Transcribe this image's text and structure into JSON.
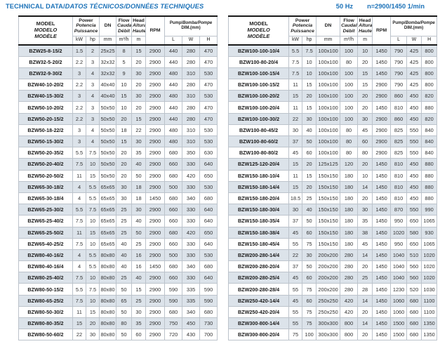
{
  "colors": {
    "accent": "#1c72b8",
    "stripe": "#dce3ea",
    "grid": "#bcc3cb",
    "heavy": "#1a1a1a",
    "text": "#333333"
  },
  "header_bar": {
    "title_en": "TECHNICAL DATA/",
    "title_intl": "DATOS TÉCNICOS/DONNÉES TECHNIQUES",
    "frequency": "50 Hz",
    "speed": "n=2900/1450 1/min"
  },
  "table_header": {
    "model": {
      "en": "MODEL",
      "es": "MODELO",
      "fr": "MODÈLE"
    },
    "power": {
      "en": "Power",
      "es": "Potencia",
      "fr": "Puissance"
    },
    "dn": "DN",
    "flow": {
      "en": "Flow",
      "es": "Caudal",
      "fr": "Débit"
    },
    "head": {
      "en": "Head",
      "es": "Altura",
      "fr": "Hauteur"
    },
    "rpm": "RPM",
    "pump_dim": {
      "en": "Pump/",
      "intl": "Bomba/Pompe",
      "line2": "DIM.(mm)"
    },
    "units": {
      "kw": "kW",
      "hp": "hp",
      "mm": "mm",
      "flow": "m³/h",
      "head": "m",
      "l": "L",
      "w": "W",
      "h": "H"
    }
  },
  "tables": [
    {
      "rows": [
        [
          "BZW25-8-15/2",
          "1.5",
          "2",
          "25x25",
          "8",
          "15",
          "2900",
          "440",
          "280",
          "470"
        ],
        [
          "BZW32-5-20/2",
          "2.2",
          "3",
          "32x32",
          "5",
          "20",
          "2900",
          "440",
          "280",
          "470"
        ],
        [
          "BZW32-9-30/2",
          "3",
          "4",
          "32x32",
          "9",
          "30",
          "2900",
          "480",
          "310",
          "530"
        ],
        [
          "BZW40-10-20/2",
          "2.2",
          "3",
          "40x40",
          "10",
          "20",
          "2900",
          "440",
          "280",
          "470"
        ],
        [
          "BZW40-15-30/2",
          "3",
          "4",
          "40x40",
          "15",
          "30",
          "2900",
          "480",
          "310",
          "530"
        ],
        [
          "BZW50-10-20/2",
          "2.2",
          "3",
          "50x50",
          "10",
          "20",
          "2900",
          "440",
          "280",
          "470"
        ],
        [
          "BZW50-20-15/2",
          "2.2",
          "3",
          "50x50",
          "20",
          "15",
          "2900",
          "440",
          "280",
          "470"
        ],
        [
          "BZW50-18-22/2",
          "3",
          "4",
          "50x50",
          "18",
          "22",
          "2900",
          "480",
          "310",
          "530"
        ],
        [
          "BZW50-15-30/2",
          "3",
          "4",
          "50x50",
          "15",
          "30",
          "2900",
          "480",
          "310",
          "530"
        ],
        [
          "BZW50-20-35/2",
          "5.5",
          "7.5",
          "50x50",
          "20",
          "35",
          "2900",
          "680",
          "350",
          "630"
        ],
        [
          "BZW50-20-40/2",
          "7.5",
          "10",
          "50x50",
          "20",
          "40",
          "2900",
          "660",
          "330",
          "640"
        ],
        [
          "BZW50-20-50/2",
          "11",
          "15",
          "50x50",
          "20",
          "50",
          "2900",
          "680",
          "420",
          "650"
        ],
        [
          "BZW65-30-18/2",
          "4",
          "5.5",
          "65x65",
          "30",
          "18",
          "2900",
          "500",
          "330",
          "530"
        ],
        [
          "BZW65-30-18/4",
          "4",
          "5.5",
          "65x65",
          "30",
          "18",
          "1450",
          "680",
          "340",
          "680"
        ],
        [
          "BZW65-25-30/2",
          "5.5",
          "7.5",
          "65x65",
          "25",
          "30",
          "2900",
          "660",
          "330",
          "640"
        ],
        [
          "BZW65-25-40/2",
          "7.5",
          "10",
          "65x65",
          "25",
          "40",
          "2900",
          "660",
          "330",
          "640"
        ],
        [
          "BZW65-25-50/2",
          "11",
          "15",
          "65x65",
          "25",
          "50",
          "2900",
          "680",
          "420",
          "650"
        ],
        [
          "BZW65-40-25/2",
          "7.5",
          "10",
          "65x65",
          "40",
          "25",
          "2900",
          "660",
          "330",
          "640"
        ],
        [
          "BZW80-40-16/2",
          "4",
          "5.5",
          "80x80",
          "40",
          "16",
          "2900",
          "500",
          "330",
          "530"
        ],
        [
          "BZW80-40-16/4",
          "4",
          "5.5",
          "80x80",
          "40",
          "16",
          "1450",
          "680",
          "340",
          "680"
        ],
        [
          "BZW80-25-40/2",
          "7.5",
          "10",
          "80x80",
          "25",
          "40",
          "2900",
          "660",
          "330",
          "640"
        ],
        [
          "BZW80-50-15/2",
          "5.5",
          "7.5",
          "80x80",
          "50",
          "15",
          "2900",
          "590",
          "335",
          "590"
        ],
        [
          "BZW80-65-25/2",
          "7.5",
          "10",
          "80x80",
          "65",
          "25",
          "2900",
          "590",
          "335",
          "590"
        ],
        [
          "BZW80-50-30/2",
          "11",
          "15",
          "80x80",
          "50",
          "30",
          "2900",
          "680",
          "340",
          "680"
        ],
        [
          "BZW80-80-35/2",
          "15",
          "20",
          "80x80",
          "80",
          "35",
          "2900",
          "750",
          "450",
          "730"
        ],
        [
          "BZW80-50-60/2",
          "22",
          "30",
          "80x80",
          "50",
          "60",
          "2900",
          "720",
          "430",
          "700"
        ]
      ]
    },
    {
      "rows": [
        [
          "BZW100-100-10/4",
          "5.5",
          "7.5",
          "100x100",
          "100",
          "10",
          "1450",
          "790",
          "425",
          "800"
        ],
        [
          "BZW100-80-20/4",
          "7.5",
          "10",
          "100x100",
          "80",
          "20",
          "1450",
          "790",
          "425",
          "800"
        ],
        [
          "BZW100-100-15/4",
          "7.5",
          "10",
          "100x100",
          "100",
          "15",
          "1450",
          "790",
          "425",
          "800"
        ],
        [
          "BZW100-100-15/2",
          "11",
          "15",
          "100x100",
          "100",
          "15",
          "2900",
          "790",
          "425",
          "800"
        ],
        [
          "BZW100-100-20/2",
          "15",
          "20",
          "100x100",
          "100",
          "20",
          "2900",
          "860",
          "450",
          "820"
        ],
        [
          "BZW100-100-20/4",
          "11",
          "15",
          "100x100",
          "100",
          "20",
          "1450",
          "810",
          "450",
          "880"
        ],
        [
          "BZW100-100-30/2",
          "22",
          "30",
          "100x100",
          "100",
          "30",
          "2900",
          "860",
          "450",
          "820"
        ],
        [
          "BZW100-80-45/2",
          "30",
          "40",
          "100x100",
          "80",
          "45",
          "2900",
          "825",
          "550",
          "840"
        ],
        [
          "BZW100-80-60/2",
          "37",
          "50",
          "100x100",
          "80",
          "60",
          "2900",
          "825",
          "550",
          "840"
        ],
        [
          "BZW100-80-80/2",
          "45",
          "60",
          "100x100",
          "80",
          "80",
          "2900",
          "825",
          "550",
          "840"
        ],
        [
          "BZW125-120-20/4",
          "15",
          "20",
          "125x125",
          "120",
          "20",
          "1450",
          "810",
          "450",
          "880"
        ],
        [
          "BZW150-180-10/4",
          "11",
          "15",
          "150x150",
          "180",
          "10",
          "1450",
          "810",
          "450",
          "880"
        ],
        [
          "BZW150-180-14/4",
          "15",
          "20",
          "150x150",
          "180",
          "14",
          "1450",
          "810",
          "450",
          "880"
        ],
        [
          "BZW150-180-20/4",
          "18.5",
          "25",
          "150x150",
          "180",
          "20",
          "1450",
          "810",
          "450",
          "880"
        ],
        [
          "BZW150-180-30/4",
          "30",
          "40",
          "150x150",
          "180",
          "30",
          "1450",
          "870",
          "550",
          "990"
        ],
        [
          "BZW150-180-35/4",
          "37",
          "50",
          "150x150",
          "180",
          "35",
          "1450",
          "950",
          "650",
          "1065"
        ],
        [
          "BZW150-180-38/4",
          "45",
          "60",
          "150x150",
          "180",
          "38",
          "1450",
          "1020",
          "580",
          "930"
        ],
        [
          "BZW150-180-45/4",
          "55",
          "75",
          "150x150",
          "180",
          "45",
          "1450",
          "950",
          "650",
          "1065"
        ],
        [
          "BZW200-280-14/4",
          "22",
          "30",
          "200x200",
          "280",
          "14",
          "1450",
          "1040",
          "510",
          "1020"
        ],
        [
          "BZW200-280-20/4",
          "37",
          "50",
          "200x200",
          "280",
          "20",
          "1450",
          "1040",
          "560",
          "1020"
        ],
        [
          "BZW200-280-25/4",
          "45",
          "60",
          "200x200",
          "280",
          "25",
          "1450",
          "1040",
          "560",
          "1020"
        ],
        [
          "BZW200-280-28/4",
          "55",
          "75",
          "200x200",
          "280",
          "28",
          "1450",
          "1230",
          "520",
          "1030"
        ],
        [
          "BZW250-420-14/4",
          "45",
          "60",
          "250x250",
          "420",
          "14",
          "1450",
          "1060",
          "680",
          "1100"
        ],
        [
          "BZW250-420-20/4",
          "55",
          "75",
          "250x250",
          "420",
          "20",
          "1450",
          "1060",
          "680",
          "1100"
        ],
        [
          "BZW300-800-14/4",
          "55",
          "75",
          "300x300",
          "800",
          "14",
          "1450",
          "1500",
          "680",
          "1350"
        ],
        [
          "BZW300-800-20/4",
          "75",
          "100",
          "300x300",
          "800",
          "20",
          "1450",
          "1500",
          "680",
          "1350"
        ]
      ]
    }
  ]
}
